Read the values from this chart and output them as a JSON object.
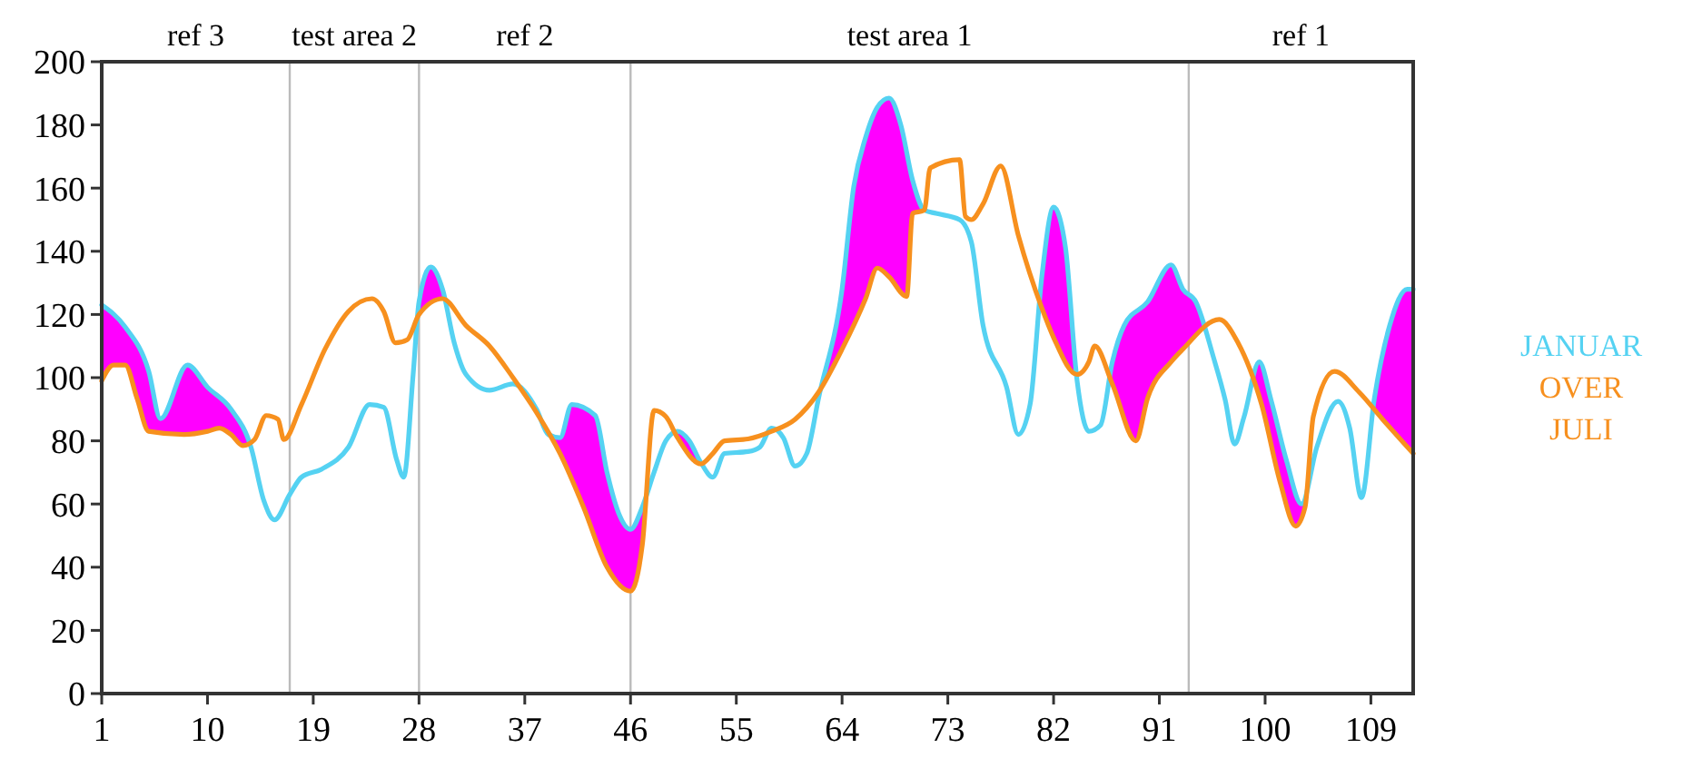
{
  "chart_data": {
    "type": "line",
    "xlim": [
      1,
      112.6
    ],
    "ylim": [
      0,
      200
    ],
    "xticks": [
      1,
      10,
      19,
      28,
      37,
      46,
      55,
      64,
      73,
      82,
      91,
      100,
      109
    ],
    "yticks": [
      0,
      20,
      40,
      60,
      80,
      100,
      120,
      140,
      160,
      180,
      200
    ],
    "grid": false,
    "legend": "right",
    "marker": "none",
    "line_style": "solid",
    "series": [
      {
        "type": "area",
        "color": "#ff00ff",
        "x": [
          1,
          3,
          5,
          6,
          8.3,
          10,
          12,
          13.7,
          14.8,
          15.7,
          17,
          18,
          19.7,
          22,
          23.8,
          25,
          26.1,
          26.7,
          27.5,
          28,
          29,
          30,
          31,
          32,
          34,
          36,
          38,
          39,
          40,
          41,
          43,
          44,
          45,
          46,
          47,
          48,
          49,
          50,
          51,
          52,
          53,
          54,
          56,
          57,
          58,
          59,
          60,
          61,
          62,
          64,
          65,
          66,
          67,
          68,
          69,
          70,
          71,
          72,
          74,
          75,
          76,
          78,
          79,
          80,
          81,
          82,
          83,
          84,
          85,
          86,
          87,
          88,
          90,
          92,
          93,
          94.1,
          95.6,
          96.6,
          97.4,
          98.2,
          99.5,
          100.5,
          101.8,
          103.1,
          104.4,
          106.2,
          107.2,
          108.2,
          109.3,
          110.6,
          112.1,
          112.6
        ],
        "values": [
          123,
          116,
          102,
          87,
          104,
          97,
          90,
          78,
          61,
          55,
          63,
          68.5,
          71,
          78,
          91.5,
          90.6,
          74,
          68.5,
          101,
          124,
          135,
          128,
          111,
          101,
          96,
          98,
          90,
          82,
          81,
          91.5,
          88,
          70,
          57,
          52,
          59,
          70,
          80,
          83,
          80,
          73,
          68.5,
          76,
          76.6,
          78,
          84,
          81,
          72,
          76,
          93.5,
          128,
          160.6,
          176,
          185.6,
          188.5,
          180,
          162.5,
          153,
          152,
          150,
          143,
          116.5,
          97,
          82,
          91.5,
          132,
          154,
          141.5,
          99,
          83,
          85,
          105,
          116.5,
          124,
          135.7,
          128,
          124,
          106.5,
          93,
          79,
          87.5,
          105,
          93,
          74,
          60,
          78,
          92.5,
          84,
          62,
          93.5,
          116.5,
          128,
          128
        ]
      },
      {
        "name": "JANUAR",
        "color": "#55d2f2",
        "x": [
          1,
          3,
          5,
          6,
          8.3,
          10,
          12,
          13.7,
          14.8,
          15.7,
          17,
          18,
          19.7,
          22,
          23.8,
          25,
          26.1,
          26.7,
          27.5,
          28,
          29,
          30,
          31,
          32,
          34,
          36,
          38,
          39,
          40,
          41,
          43,
          44,
          45,
          46,
          47,
          48,
          49,
          50,
          51,
          52,
          53,
          54,
          56,
          57,
          58,
          59,
          60,
          61,
          62,
          64,
          65,
          66,
          67,
          68,
          69,
          70,
          71,
          72,
          74,
          75,
          76,
          78,
          79,
          80,
          81,
          82,
          83,
          84,
          85,
          86,
          87,
          88,
          90,
          92,
          93,
          94.1,
          95.6,
          96.6,
          97.4,
          98.2,
          99.5,
          100.5,
          101.8,
          103.1,
          104.4,
          106.2,
          107.2,
          108.2,
          109.3,
          110.6,
          112.1,
          112.6
        ],
        "values": [
          123,
          116,
          102,
          87,
          104,
          97,
          90,
          78,
          61,
          55,
          63,
          68.5,
          71,
          78,
          91.5,
          90.6,
          74,
          68.5,
          101,
          124,
          135,
          128,
          111,
          101,
          96,
          98,
          90,
          82,
          81,
          91.5,
          88,
          70,
          57,
          52,
          59,
          70,
          80,
          83,
          80,
          73,
          68.5,
          76,
          76.6,
          78,
          84,
          81,
          72,
          76,
          93.5,
          128,
          160.6,
          176,
          185.6,
          188.5,
          180,
          162.5,
          153,
          152,
          150,
          143,
          116.5,
          97,
          82,
          91.5,
          132,
          154,
          141.5,
          99,
          83,
          85,
          105,
          116.5,
          124,
          135.7,
          128,
          124,
          106.5,
          93,
          79,
          87.5,
          105,
          93,
          74,
          60,
          78,
          92.5,
          84,
          62,
          93.5,
          116.5,
          128,
          128
        ]
      },
      {
        "name": "JULI",
        "color": "#f7901e",
        "x": [
          1,
          2,
          3,
          4,
          5,
          8,
          10,
          11,
          12,
          13,
          14,
          15,
          16,
          16.5,
          18,
          20,
          22,
          24,
          25,
          26,
          27,
          28,
          30,
          32,
          34,
          36,
          38,
          40,
          42,
          44,
          46,
          46.5,
          47,
          48,
          49,
          50,
          52,
          53,
          54,
          56,
          58,
          60,
          62,
          64,
          66,
          67,
          68,
          69.5,
          70,
          71,
          71.5,
          74,
          74.5,
          75,
          76,
          77.5,
          79,
          81,
          82,
          84,
          85,
          85.5,
          87,
          89,
          90,
          92,
          93,
          96.1,
          97.7,
          99.7,
          101.3,
          102.6,
          103.4,
          104.1,
          105.9,
          108,
          110,
          112.6
        ],
        "values": [
          99,
          104,
          104,
          93.5,
          83,
          82,
          83,
          84,
          82,
          78.5,
          80.4,
          88,
          86.8,
          80.4,
          91.5,
          109,
          121,
          125,
          121,
          111,
          112,
          120,
          125,
          116.5,
          110,
          100,
          89,
          76,
          59,
          40,
          32.4,
          36,
          47,
          89.6,
          87.7,
          81,
          72.7,
          76,
          80,
          80.6,
          83,
          86.8,
          95.4,
          109,
          125,
          134.7,
          131.9,
          125.7,
          152,
          153,
          166.4,
          169,
          151,
          150,
          155,
          167,
          145,
          122,
          112.7,
          101,
          105,
          110,
          98,
          80,
          93.5,
          105,
          109,
          118.4,
          111,
          91.5,
          66.6,
          53,
          59,
          87.7,
          102,
          95.4,
          86.8,
          76
        ]
      }
    ],
    "ref_lines": [
      {
        "axis": "x",
        "value": 17,
        "color": "#bbbbbb"
      },
      {
        "axis": "x",
        "value": 28,
        "color": "#bbbbbb"
      },
      {
        "axis": "x",
        "value": 46,
        "color": "#bbbbbb"
      },
      {
        "axis": "x",
        "value": 93.5,
        "color": "#bbbbbb"
      }
    ],
    "annotations": [
      "OVER",
      "ref 3",
      "test area 2",
      "ref 2",
      "test area 1",
      "ref 1"
    ]
  }
}
